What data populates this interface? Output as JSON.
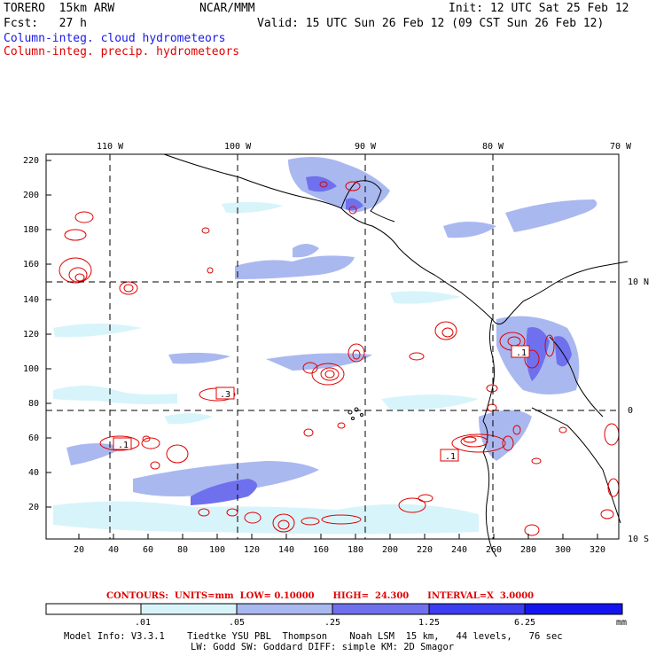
{
  "header": {
    "model": "TORERO  15km ARW",
    "center": "NCAR/MMM",
    "init": "Init: 12 UTC Sat 25 Feb 12",
    "fcst": "Fcst:   27 h",
    "valid": "Valid: 15 UTC Sun 26 Feb 12 (09 CST Sun 26 Feb 12)",
    "legend_cloud": "Column-integ. cloud hydrometeors",
    "legend_precip": "Column-integ. precip. hydrometeors"
  },
  "map": {
    "top_lon_labels": [
      "110 W",
      "100 W",
      "90 W",
      "80 W",
      "70 W"
    ],
    "right_lat_labels": [
      "10 N",
      "0",
      "10 S"
    ],
    "y_ticks": [
      "220",
      "200",
      "180",
      "160",
      "140",
      "120",
      "100",
      "80",
      "60",
      "40",
      "20"
    ],
    "x_ticks": [
      "20",
      "40",
      "60",
      "80",
      "100",
      "120",
      "140",
      "160",
      "180",
      "200",
      "220",
      "240",
      "260",
      "280",
      "300",
      "320"
    ],
    "contour_labels": [
      ".1",
      ".3",
      ".1",
      ".1",
      ".1"
    ]
  },
  "contours_line": "CONTOURS:  UNITS=mm  LOW= 0.10000      HIGH=  24.300      INTERVAL=X  3.0000",
  "colorbar": {
    "labels": [
      ".01",
      ".05",
      ".25",
      "1.25",
      "6.25"
    ],
    "unit": "mm",
    "colors": [
      "#ffffff",
      "#d8f4fb",
      "#aab8f0",
      "#6f70ee",
      "#3c3cf0",
      "#1414f0"
    ]
  },
  "footer": {
    "line1": "Model Info: V3.3.1    Tiedtke YSU PBL  Thompson    Noah LSM  15 km,   44 levels,   76 sec",
    "line2": "LW: Godd SW: Goddard DIFF: simple KM: 2D Smagor"
  },
  "colors": {
    "cloud_light": "#d8f4fb",
    "cloud_mid": "#aab8f0",
    "cloud_dark": "#6f70ee",
    "precip_contour": "#e00000"
  }
}
